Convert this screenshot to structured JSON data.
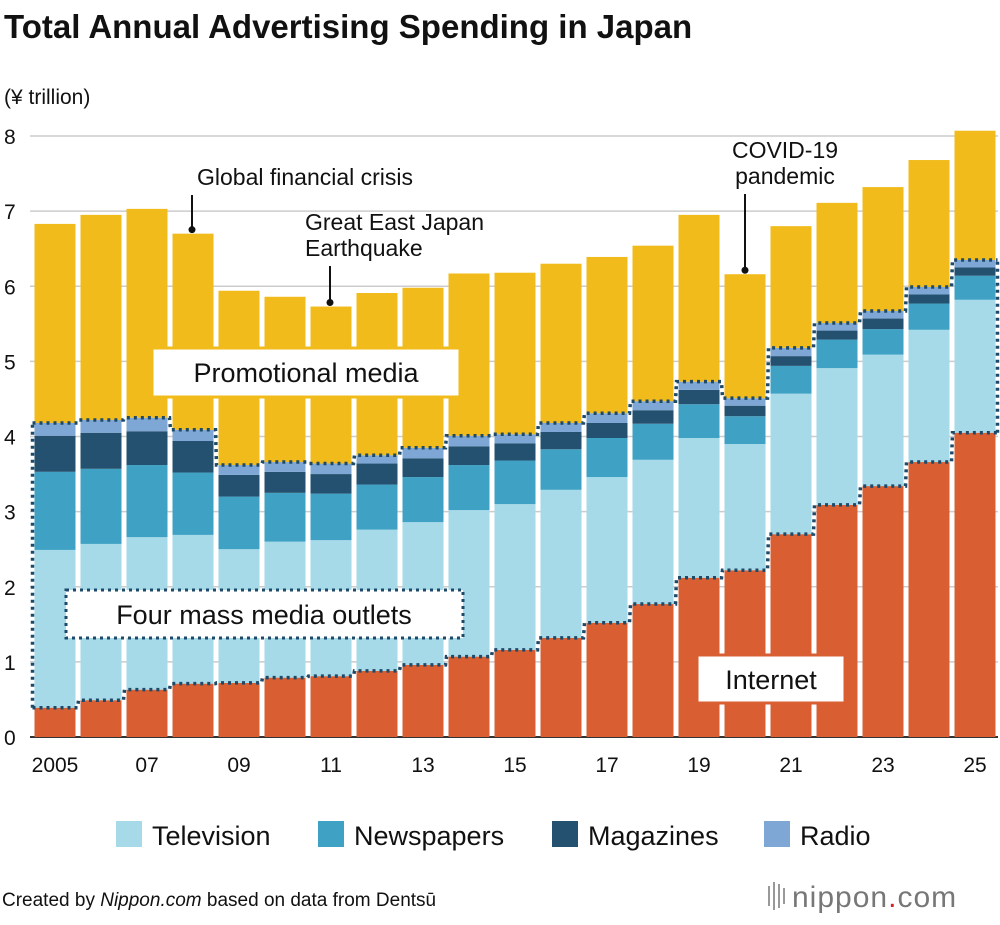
{
  "chart_data": {
    "type": "bar",
    "stacked": true,
    "title": "Total Annual Advertising Spending in Japan",
    "ylabel": "(¥ trillion)",
    "ylim": [
      0,
      8
    ],
    "yticks": [
      "0",
      "1",
      "2",
      "3",
      "4",
      "5",
      "6",
      "7",
      "8"
    ],
    "grid": true,
    "categories": [
      "2005",
      "2006",
      "2007",
      "2008",
      "2009",
      "2010",
      "2011",
      "2012",
      "2013",
      "2014",
      "2015",
      "2016",
      "2017",
      "2018",
      "2019",
      "2020",
      "2021",
      "2022",
      "2023",
      "2024",
      "2025"
    ],
    "xtick_labels": [
      "2005",
      "",
      "07",
      "",
      "09",
      "",
      "11",
      "",
      "13",
      "",
      "15",
      "",
      "17",
      "",
      "19",
      "",
      "21",
      "",
      "23",
      "",
      "25"
    ],
    "series": [
      {
        "name": "Internet",
        "color": "#d95f33",
        "values": [
          0.39,
          0.49,
          0.63,
          0.71,
          0.72,
          0.79,
          0.81,
          0.88,
          0.96,
          1.07,
          1.16,
          1.32,
          1.52,
          1.77,
          2.12,
          2.22,
          2.7,
          3.09,
          3.34,
          3.66,
          4.05
        ]
      },
      {
        "name": "Television",
        "color": "#a6dae9",
        "values": [
          2.1,
          2.08,
          2.03,
          1.98,
          1.78,
          1.81,
          1.81,
          1.88,
          1.9,
          1.95,
          1.94,
          1.97,
          1.94,
          1.92,
          1.86,
          1.68,
          1.87,
          1.82,
          1.75,
          1.76,
          1.77
        ]
      },
      {
        "name": "Newspapers",
        "color": "#3fa2c5",
        "values": [
          1.04,
          1.0,
          0.96,
          0.83,
          0.7,
          0.65,
          0.62,
          0.6,
          0.6,
          0.6,
          0.58,
          0.54,
          0.52,
          0.48,
          0.45,
          0.37,
          0.37,
          0.38,
          0.34,
          0.35,
          0.32
        ]
      },
      {
        "name": "Magazines",
        "color": "#24516f",
        "values": [
          0.48,
          0.48,
          0.45,
          0.42,
          0.29,
          0.28,
          0.26,
          0.28,
          0.25,
          0.25,
          0.23,
          0.23,
          0.2,
          0.18,
          0.19,
          0.14,
          0.13,
          0.12,
          0.14,
          0.12,
          0.11
        ]
      },
      {
        "name": "Radio",
        "color": "#7ea7d6",
        "values": [
          0.17,
          0.17,
          0.18,
          0.15,
          0.13,
          0.13,
          0.14,
          0.11,
          0.14,
          0.14,
          0.12,
          0.12,
          0.13,
          0.12,
          0.11,
          0.1,
          0.11,
          0.1,
          0.1,
          0.1,
          0.1
        ]
      },
      {
        "name": "Promotional media",
        "color": "#f0bb1b",
        "values": [
          2.65,
          2.73,
          2.78,
          2.61,
          2.32,
          2.2,
          2.09,
          2.16,
          2.13,
          2.16,
          2.15,
          2.12,
          2.08,
          2.07,
          2.22,
          1.65,
          1.62,
          1.6,
          1.65,
          1.69,
          1.72
        ]
      }
    ],
    "group_labels": {
      "promotional": "Promotional media",
      "four_mass": "Four mass media outlets",
      "internet": "Internet"
    },
    "annotations": [
      {
        "text": [
          "Global financial crisis"
        ],
        "category": "2008"
      },
      {
        "text": [
          "Great East Japan",
          "Earthquake"
        ],
        "category": "2011"
      },
      {
        "text": [
          "COVID-19",
          "pandemic"
        ],
        "category": "2020"
      }
    ],
    "legend": [
      "Television",
      "Newspapers",
      "Magazines",
      "Radio"
    ],
    "legend_position": "bottom"
  },
  "footer": {
    "prefix": "Created by ",
    "site": "Nippon.com",
    "suffix": " based on data from Dentsū",
    "logo": "nippon.com"
  }
}
